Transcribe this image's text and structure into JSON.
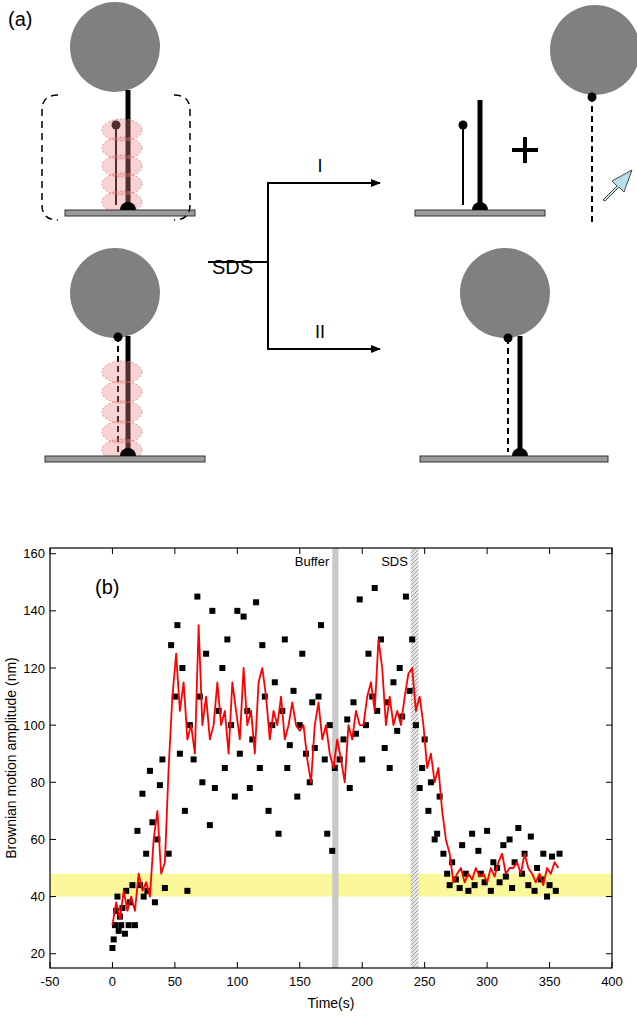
{
  "diagram": {
    "label": "(a)",
    "reagent": "SDS",
    "pathways": [
      "I",
      "II"
    ]
  },
  "chart_data": {
    "type": "scatter",
    "panel_label": "(b)",
    "x_label": "Time(s)",
    "y_label": "Brownian motion amplitude (nm)",
    "xlim": [
      -50,
      400
    ],
    "xticks": [
      -50,
      0,
      50,
      100,
      150,
      200,
      250,
      300,
      350,
      400
    ],
    "ylim": [
      15,
      162
    ],
    "yticks": [
      20,
      40,
      60,
      80,
      100,
      120,
      140,
      160
    ],
    "reference_band": [
      40,
      48
    ],
    "annotations": [
      {
        "text": "Buffer",
        "x": [
          176,
          181
        ]
      },
      {
        "text": "SDS",
        "x": [
          239,
          245
        ]
      }
    ],
    "series": [
      {
        "type": "scatter",
        "marker": "square",
        "color": "#000000",
        "x": [
          0,
          1,
          2,
          3,
          4,
          5,
          6,
          7,
          8,
          10,
          11,
          13,
          14,
          16,
          18,
          20,
          22,
          24,
          25,
          27,
          28,
          30,
          32,
          34,
          36,
          38,
          40,
          42,
          45,
          47,
          50,
          52,
          54,
          56,
          58,
          60,
          62,
          65,
          68,
          70,
          72,
          75,
          78,
          80,
          82,
          85,
          88,
          90,
          92,
          95,
          98,
          100,
          102,
          105,
          108,
          110,
          112,
          115,
          118,
          120,
          122,
          125,
          128,
          130,
          133,
          136,
          138,
          140,
          142,
          145,
          148,
          150,
          152,
          155,
          158,
          160,
          162,
          165,
          167,
          170,
          172,
          174,
          176,
          178,
          182,
          185,
          188,
          190,
          193,
          195,
          198,
          200,
          203,
          205,
          208,
          210,
          212,
          215,
          218,
          220,
          222,
          225,
          228,
          230,
          232,
          235,
          238,
          240,
          243,
          246,
          248,
          250,
          253,
          255,
          258,
          260,
          262,
          265,
          268,
          270,
          272,
          275,
          278,
          280,
          283,
          285,
          288,
          290,
          293,
          295,
          298,
          300,
          303,
          305,
          308,
          310,
          313,
          315,
          318,
          320,
          322,
          325,
          328,
          330,
          333,
          335,
          338,
          340,
          343,
          345,
          348,
          350,
          352,
          355,
          358
        ],
        "values": [
          22,
          25,
          30,
          35,
          40,
          28,
          33,
          30,
          36,
          27,
          42,
          30,
          38,
          44,
          30,
          63,
          44,
          76,
          40,
          55,
          42,
          84,
          66,
          38,
          60,
          79,
          88,
          43,
          55,
          128,
          110,
          135,
          90,
          120,
          70,
          42,
          100,
          88,
          145,
          110,
          80,
          125,
          65,
          140,
          78,
          105,
          120,
          85,
          130,
          100,
          75,
          140,
          90,
          138,
          105,
          78,
          95,
          143,
          85,
          128,
          110,
          70,
          100,
          115,
          62,
          105,
          130,
          85,
          93,
          112,
          75,
          100,
          125,
          90,
          80,
          108,
          92,
          110,
          135,
          88,
          62,
          100,
          56,
          85,
          88,
          95,
          102,
          78,
          108,
          97,
          144,
          88,
          100,
          125,
          110,
          148,
          105,
          130,
          92,
          108,
          85,
          115,
          98,
          120,
          103,
          145,
          112,
          130,
          100,
          78,
          85,
          95,
          70,
          80,
          60,
          62,
          75,
          55,
          48,
          44,
          52,
          46,
          43,
          58,
          48,
          42,
          62,
          44,
          56,
          48,
          45,
          63,
          42,
          52,
          50,
          45,
          58,
          47,
          60,
          43,
          52,
          64,
          48,
          55,
          44,
          61,
          42,
          50,
          46,
          55,
          40,
          44,
          54,
          42,
          55
        ]
      },
      {
        "type": "line",
        "color": "#ff0000",
        "x": [
          0,
          3,
          6,
          9,
          12,
          15,
          18,
          21,
          24,
          27,
          30,
          33,
          36,
          39,
          42,
          45,
          48,
          51,
          54,
          57,
          60,
          63,
          66,
          69,
          72,
          75,
          78,
          81,
          84,
          87,
          90,
          93,
          96,
          99,
          102,
          105,
          108,
          111,
          114,
          117,
          120,
          123,
          126,
          129,
          132,
          135,
          138,
          141,
          144,
          147,
          150,
          153,
          156,
          159,
          162,
          165,
          168,
          171,
          174,
          177,
          180,
          183,
          186,
          189,
          192,
          195,
          198,
          201,
          204,
          207,
          210,
          213,
          216,
          219,
          222,
          225,
          228,
          231,
          234,
          237,
          240,
          243,
          246,
          249,
          252,
          255,
          258,
          261,
          264,
          267,
          270,
          273,
          276,
          279,
          282,
          285,
          288,
          291,
          294,
          297,
          300,
          303,
          306,
          309,
          312,
          315,
          318,
          321,
          324,
          327,
          330,
          333,
          336,
          339,
          342,
          345,
          348,
          351,
          354,
          357
        ],
        "values": [
          30,
          38,
          32,
          42,
          35,
          40,
          35,
          48,
          42,
          45,
          40,
          60,
          70,
          48,
          52,
          85,
          110,
          125,
          105,
          115,
          95,
          100,
          90,
          135,
          100,
          110,
          95,
          100,
          115,
          100,
          105,
          90,
          115,
          105,
          95,
          120,
          100,
          105,
          90,
          115,
          120,
          110,
          95,
          105,
          100,
          110,
          95,
          100,
          108,
          100,
          98,
          100,
          88,
          80,
          100,
          108,
          95,
          100,
          90,
          85,
          95,
          88,
          80,
          100,
          95,
          105,
          100,
          100,
          110,
          115,
          105,
          130,
          120,
          100,
          110,
          100,
          105,
          100,
          110,
          118,
          120,
          105,
          110,
          100,
          85,
          90,
          80,
          85,
          70,
          60,
          55,
          45,
          48,
          50,
          45,
          48,
          46,
          50,
          47,
          48,
          45,
          50,
          47,
          52,
          55,
          48,
          50,
          50,
          52,
          48,
          55,
          50,
          48,
          45,
          48,
          44,
          50,
          48,
          52,
          50
        ]
      }
    ]
  }
}
